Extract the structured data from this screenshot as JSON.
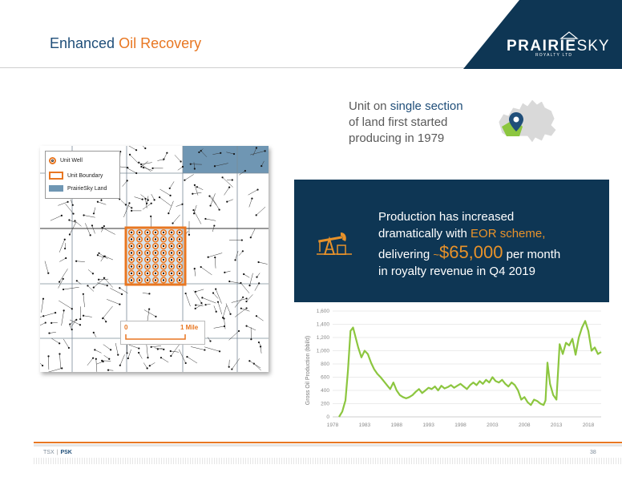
{
  "header": {
    "title_part1": "Enhanced ",
    "title_part2": "Oil Recovery",
    "logo_main_bold": "PRAIRIE",
    "logo_main_light": "SKY",
    "logo_sub": "ROYALTY LTD",
    "brand_navy": "#0e3654",
    "brand_orange": "#e87722"
  },
  "intro": {
    "line1a": "Unit on ",
    "line1b": "single section",
    "line2": "of land first started",
    "line3": "producing in 1979",
    "icon": "canada-map-pin-icon"
  },
  "production": {
    "line1": "Production has increased",
    "line2a": "dramatically with ",
    "line2b": "EOR scheme,",
    "line3a": "delivering ",
    "tilde": "~",
    "amount": "$65,000",
    "line3c": " per month",
    "line4": "in royalty revenue in Q4 2019",
    "icon": "pumpjack-icon"
  },
  "map": {
    "legend": [
      {
        "label": "Unit Well",
        "symbol": "orange-ring"
      },
      {
        "label": "Unit Boundary",
        "symbol": "orange-box"
      },
      {
        "label": "PrairieSky Land",
        "symbol": "blue-fill"
      }
    ],
    "scale_start": "0",
    "scale_end": "1 Mile",
    "land_color": "#6f96b3",
    "unit_color": "#e87722"
  },
  "chart_data": {
    "type": "line",
    "ylabel": "Gross Oil Production (bbl/d)",
    "xlabel": "",
    "ylim": [
      0,
      1600
    ],
    "xlim": [
      1978,
      2020
    ],
    "y_ticks": [
      "0",
      "200",
      "400",
      "600",
      "800",
      "1,000",
      "1,200",
      "1,400",
      "1,600"
    ],
    "x_ticks": [
      "1978",
      "1983",
      "1988",
      "1993",
      "1998",
      "2003",
      "2008",
      "2013",
      "2018"
    ],
    "grid": "horizontal",
    "color": "#8cc63f",
    "series": [
      {
        "x": [
          1979.0,
          1979.5,
          1980.0,
          1980.4,
          1980.8,
          1981.2,
          1981.6,
          1982.0,
          1982.5,
          1983.0,
          1983.5,
          1984.0,
          1984.5,
          1985.0,
          1985.5,
          1986.0,
          1986.5,
          1987.0,
          1987.5,
          1988.0,
          1988.5,
          1989.0,
          1989.5,
          1990.0,
          1990.5,
          1991.0,
          1991.5,
          1992.0,
          1992.5,
          1993.0,
          1993.5,
          1994.0,
          1994.5,
          1995.0,
          1995.5,
          1996.0,
          1996.5,
          1997.0,
          1997.5,
          1998.0,
          1998.5,
          1999.0,
          1999.5,
          2000.0,
          2000.5,
          2001.0,
          2001.5,
          2002.0,
          2002.5,
          2003.0,
          2003.5,
          2004.0,
          2004.5,
          2005.0,
          2005.5,
          2006.0,
          2006.5,
          2007.0,
          2007.5,
          2008.0,
          2008.5,
          2009.0,
          2009.5,
          2010.0,
          2010.5,
          2011.0,
          2011.3,
          2011.6,
          2012.0,
          2012.5,
          2013.0,
          2013.5,
          2014.0,
          2014.5,
          2015.0,
          2015.5,
          2016.0,
          2016.5,
          2017.0,
          2017.5,
          2018.0,
          2018.5,
          2019.0,
          2019.5,
          2020.0
        ],
        "y": [
          0,
          80,
          250,
          700,
          1300,
          1350,
          1200,
          1050,
          900,
          1000,
          950,
          820,
          720,
          650,
          600,
          540,
          480,
          420,
          520,
          400,
          330,
          300,
          280,
          300,
          330,
          380,
          420,
          360,
          400,
          440,
          420,
          460,
          400,
          470,
          430,
          450,
          480,
          440,
          470,
          500,
          460,
          420,
          480,
          520,
          480,
          540,
          500,
          560,
          520,
          600,
          540,
          520,
          560,
          500,
          460,
          520,
          480,
          400,
          260,
          300,
          220,
          180,
          260,
          240,
          200,
          180,
          250,
          820,
          500,
          330,
          260,
          1100,
          950,
          1120,
          1080,
          1180,
          940,
          1200,
          1350,
          1450,
          1300,
          1000,
          1050,
          950,
          980
        ]
      }
    ]
  },
  "footer": {
    "exchange": "TSX",
    "separator": "|",
    "ticker": "PSK",
    "page": "38"
  }
}
